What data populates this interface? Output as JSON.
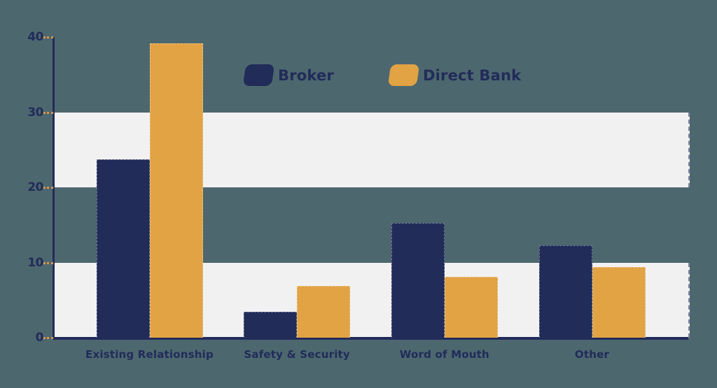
{
  "colors": {
    "background": "#4d676f",
    "navy": "#212c59",
    "orange": "#e2a344",
    "band": "#f2f1f2",
    "tick": "#d9964a",
    "text": "#212c59"
  },
  "chart_data": {
    "type": "bar",
    "title": "",
    "xlabel": "",
    "ylabel": "",
    "categories": [
      "Existing Relationship",
      "Safety & Security",
      "Word of Mouth",
      "Other"
    ],
    "series": [
      {
        "name": "Broker",
        "color": "#212c59",
        "values": [
          23.7,
          3.4,
          15.3,
          12.3
        ]
      },
      {
        "name": "Direct Bank",
        "color": "#e2a344",
        "values": [
          39.2,
          6.9,
          8.1,
          9.4
        ]
      }
    ],
    "ylim": [
      0,
      40
    ],
    "yticks": [
      0,
      10,
      20,
      30,
      40
    ],
    "band_ranges": [
      [
        0,
        10
      ],
      [
        20,
        30
      ]
    ],
    "grid": "horizontal zebra bands",
    "legend_position": "top-center"
  }
}
